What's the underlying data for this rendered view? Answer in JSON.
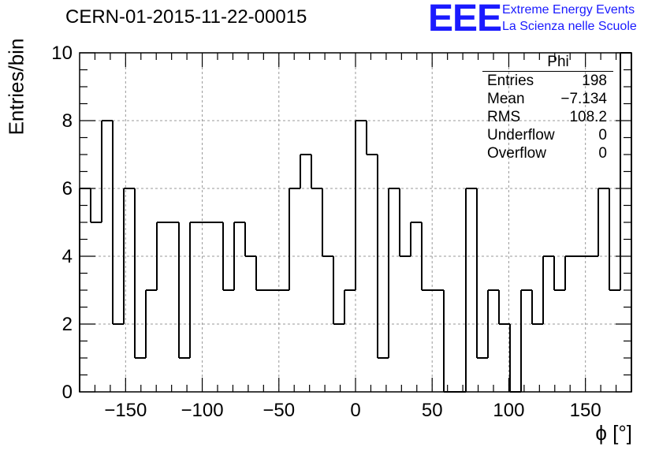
{
  "title": "CERN-01-2015-11-22-00015",
  "logo": {
    "mark": "EEE",
    "line1": "Extreme Energy Events",
    "line2": "La Scienza nelle Scuole",
    "color": "#1a1aff"
  },
  "stats": {
    "name": "Phi",
    "rows": [
      {
        "label": "Entries",
        "value": "198"
      },
      {
        "label": "Mean",
        "value": "−7.134"
      },
      {
        "label": "RMS",
        "value": "108.2"
      },
      {
        "label": "Underflow",
        "value": "0"
      },
      {
        "label": "Overflow",
        "value": "0"
      }
    ]
  },
  "chart_data": {
    "type": "bar",
    "title": "CERN-01-2015-11-22-00015",
    "xlabel": "ϕ [°]",
    "ylabel": "Entries/bin",
    "xlim": [
      -180,
      180
    ],
    "ylim": [
      0,
      10
    ],
    "bin_width": 7.2,
    "x": [
      -176.4,
      -169.2,
      -162,
      -154.8,
      -147.6,
      -140.4,
      -133.2,
      -126,
      -118.8,
      -111.6,
      -104.4,
      -97.2,
      -90,
      -82.8,
      -75.6,
      -68.4,
      -61.2,
      -54,
      -46.8,
      -39.6,
      -32.4,
      -25.2,
      -18,
      -10.8,
      -3.6,
      3.6,
      10.8,
      18,
      25.2,
      32.4,
      39.6,
      46.8,
      54,
      61.2,
      68.4,
      75.6,
      82.8,
      90,
      97.2,
      104.4,
      111.6,
      118.8,
      126,
      133.2,
      140.4,
      147.6,
      154.8,
      162,
      169.2,
      176.4
    ],
    "values": [
      6,
      5,
      8,
      2,
      6,
      1,
      3,
      5,
      5,
      1,
      5,
      5,
      5,
      3,
      5,
      4,
      3,
      3,
      3,
      6,
      7,
      6,
      4,
      2,
      3,
      8,
      7,
      1,
      6,
      4,
      5,
      3,
      3,
      0,
      0,
      6,
      1,
      3,
      2,
      0,
      3,
      2,
      4,
      3,
      4,
      4,
      4,
      6,
      3,
      10
    ],
    "xticks": [
      -150,
      -100,
      -50,
      0,
      50,
      100,
      150
    ],
    "yticks": [
      0,
      2,
      4,
      6,
      8,
      10
    ],
    "grid": true,
    "line_color": "#000000"
  }
}
